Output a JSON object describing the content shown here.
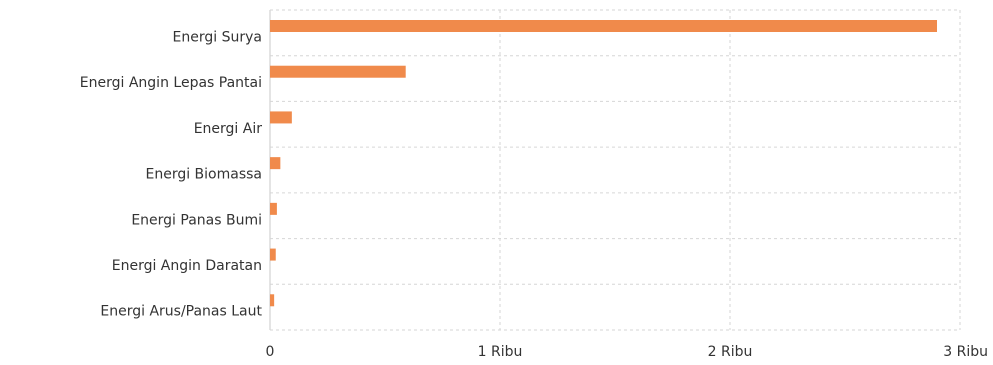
{
  "chart_data": {
    "type": "bar",
    "orientation": "horizontal",
    "categories": [
      "Energi Surya",
      "Energi Angin Lepas Pantai",
      "Energi Air",
      "Energi Biomassa",
      "Energi Panas Bumi",
      "Energi Angin Daratan",
      "Energi Arus/Panas Laut"
    ],
    "series": [
      {
        "color": "#f08a4b",
        "values": [
          2900,
          590,
          95,
          45,
          30,
          25,
          18
        ]
      }
    ],
    "xlim": [
      0,
      3000
    ],
    "x_ticks": [
      0,
      1000,
      2000,
      3000
    ],
    "x_tick_labels": [
      "0",
      "1 Ribu",
      "2 Ribu",
      "3 Ribu"
    ],
    "grid": true,
    "grid_style": "dashed",
    "title": "",
    "xlabel": "",
    "ylabel": ""
  }
}
